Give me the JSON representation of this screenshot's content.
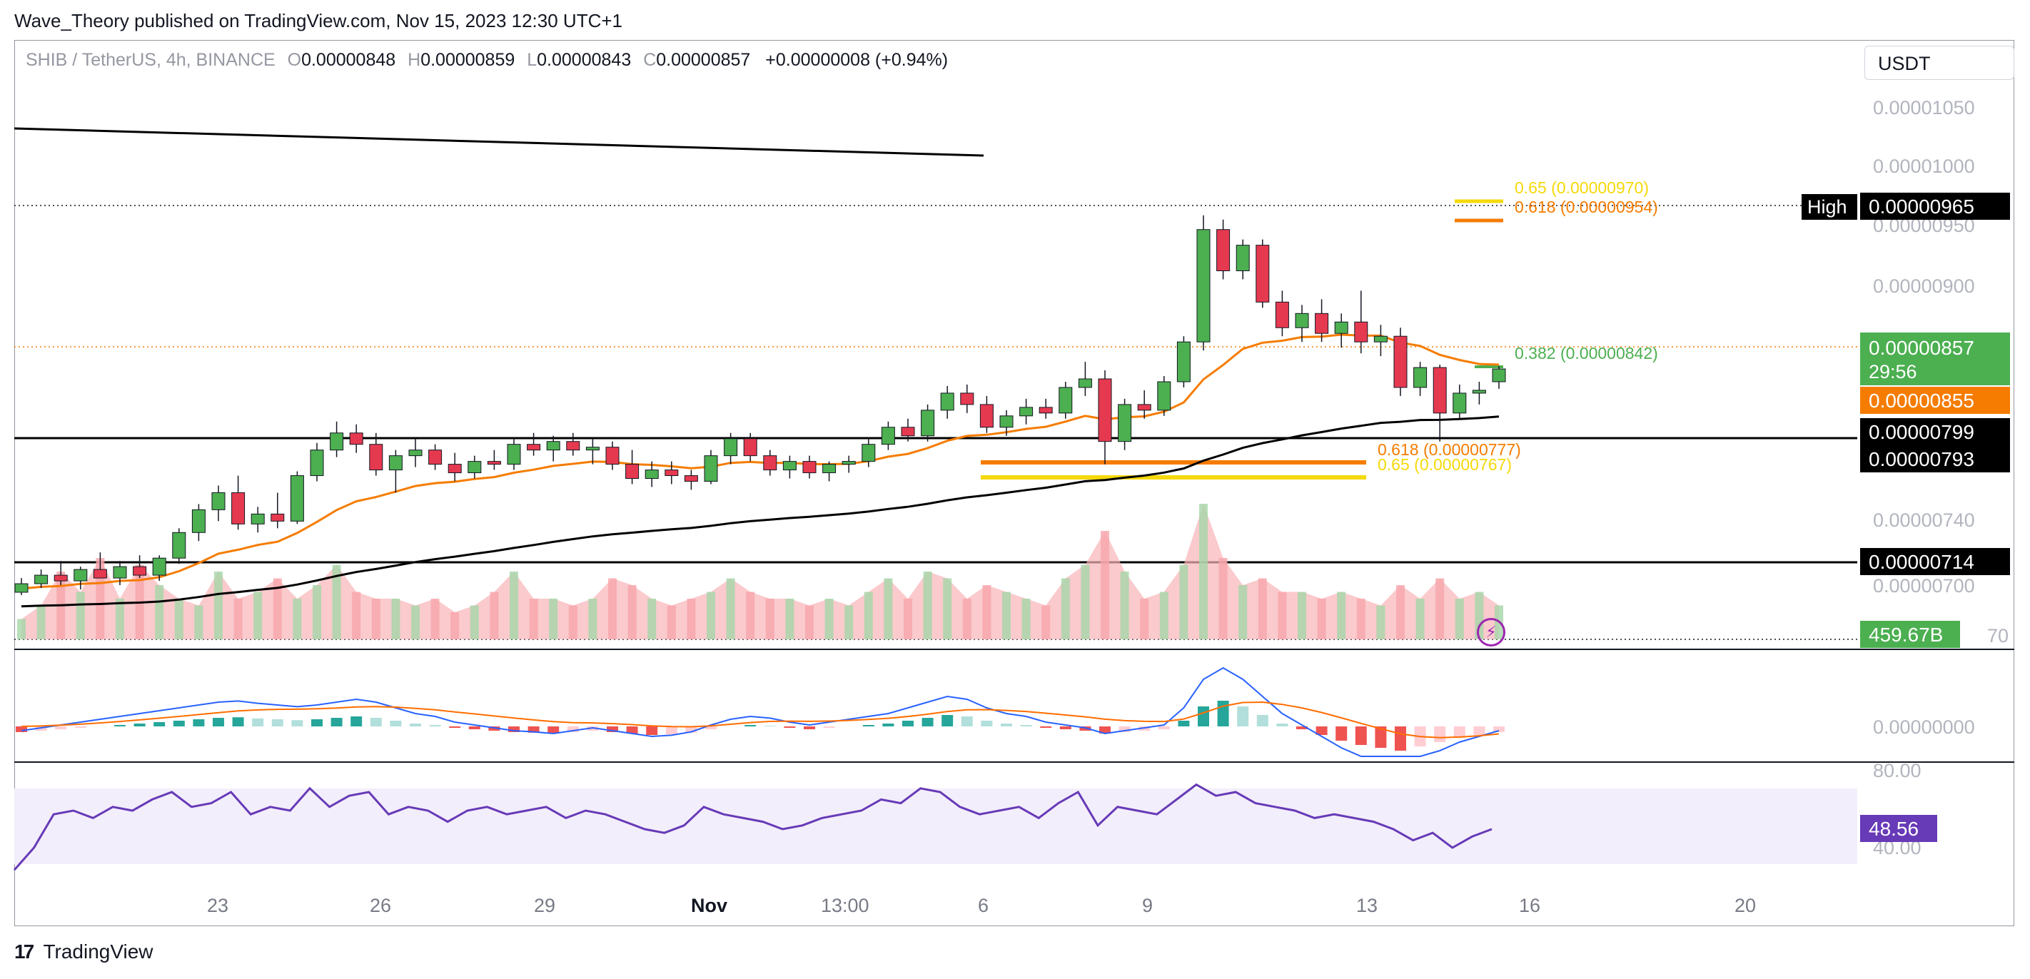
{
  "header": {
    "publisher_line": "Wave_Theory published on TradingView.com, Nov 15, 2023 12:30 UTC+1"
  },
  "legend": {
    "symbol": "SHIB / TetherUS, 4h, BINANCE",
    "o_key": "O",
    "o_val": "0.00000848",
    "h_key": "H",
    "h_val": "0.00000859",
    "l_key": "L",
    "l_val": "0.00000843",
    "c_key": "C",
    "c_val": "0.00000857",
    "change": "+0.00000008 (+0.94%)"
  },
  "currency_selector": "USDT",
  "footer": {
    "logo_glyph": "17",
    "brand": "TradingView"
  },
  "colors": {
    "up": "#26a69a",
    "down": "#ef5350",
    "candle_up": "#4caf50",
    "candle_down": "#e53950",
    "ema50": "#f57c00",
    "ema200": "#000000",
    "fib_orange": "#f57c00",
    "fib_yellow": "#f5d90a",
    "price_tag": "#4caf50",
    "rsi": "#673ab7",
    "macd": "#2962ff",
    "signal": "#ff6d00"
  },
  "chart_data": {
    "type": "candlestick",
    "interval": "4h",
    "y_axis_ticks": [
      "0.00001050",
      "0.00001000",
      "0.00000950",
      "0.00000900",
      "0.00000740",
      "0.00000700",
      "0.00000000",
      "80.00",
      "40.00"
    ],
    "y_axis_cropped_tick": "70",
    "x_axis_ticks": [
      "23",
      "26",
      "29",
      "Nov",
      "13:00",
      "6",
      "9",
      "13",
      "16",
      "20"
    ],
    "price_labels": {
      "high_tag": "High",
      "high_value": "0.00000965",
      "last_price": "0.00000857",
      "countdown": "29:56",
      "ema50_value": "0.00000855",
      "ema200_value": "0.00000799",
      "support_1": "0.00000793",
      "support_2": "0.00000714",
      "volume": "459.67B",
      "rsi": "48.56"
    },
    "fib_labels": {
      "upper_065": "0.65 (0.00000970)",
      "upper_0618": "0.618 (0.00000954)",
      "mid_0382": "0.382 (0.00000842)",
      "lower_0618": "0.618 (0.00000777)",
      "lower_065": "0.65 (0.00000767)"
    },
    "candles": [
      [
        7e-06,
        7.1e-06,
        6.98e-06,
        7.06e-06
      ],
      [
        7.06e-06,
        7.16e-06,
        7.03e-06,
        7.12e-06
      ],
      [
        7.12e-06,
        7.22e-06,
        7.05e-06,
        7.08e-06
      ],
      [
        7.08e-06,
        7.18e-06,
        7.02e-06,
        7.16e-06
      ],
      [
        7.16e-06,
        7.28e-06,
        7.12e-06,
        7.1e-06
      ],
      [
        7.1e-06,
        7.22e-06,
        7.05e-06,
        7.18e-06
      ],
      [
        7.18e-06,
        7.26e-06,
        7.1e-06,
        7.12e-06
      ],
      [
        7.12e-06,
        7.26e-06,
        7.08e-06,
        7.24e-06
      ],
      [
        7.24e-06,
        7.45e-06,
        7.2e-06,
        7.42e-06
      ],
      [
        7.42e-06,
        7.62e-06,
        7.36e-06,
        7.58e-06
      ],
      [
        7.58e-06,
        7.75e-06,
        7.5e-06,
        7.7e-06
      ],
      [
        7.7e-06,
        7.82e-06,
        7.44e-06,
        7.48e-06
      ],
      [
        7.48e-06,
        7.6e-06,
        7.42e-06,
        7.55e-06
      ],
      [
        7.55e-06,
        7.7e-06,
        7.45e-06,
        7.5e-06
      ],
      [
        7.5e-06,
        7.85e-06,
        7.48e-06,
        7.82e-06
      ],
      [
        7.82e-06,
        8.05e-06,
        7.78e-06,
        8e-06
      ],
      [
        8e-06,
        8.2e-06,
        7.95e-06,
        8.12e-06
      ],
      [
        8.12e-06,
        8.18e-06,
        7.98e-06,
        8.04e-06
      ],
      [
        8.04e-06,
        8.12e-06,
        7.82e-06,
        7.86e-06
      ],
      [
        7.86e-06,
        8e-06,
        7.7e-06,
        7.96e-06
      ],
      [
        7.96e-06,
        8.08e-06,
        7.88e-06,
        8e-06
      ],
      [
        8e-06,
        8.04e-06,
        7.86e-06,
        7.9e-06
      ],
      [
        7.9e-06,
        7.98e-06,
        7.78e-06,
        7.84e-06
      ],
      [
        7.84e-06,
        7.96e-06,
        7.8e-06,
        7.92e-06
      ],
      [
        7.92e-06,
        8e-06,
        7.86e-06,
        7.9e-06
      ],
      [
        7.9e-06,
        8.08e-06,
        7.86e-06,
        8.04e-06
      ],
      [
        8.04e-06,
        8.12e-06,
        7.96e-06,
        8e-06
      ],
      [
        8e-06,
        8.1e-06,
        7.92e-06,
        8.06e-06
      ],
      [
        8.06e-06,
        8.12e-06,
        7.96e-06,
        8e-06
      ],
      [
        8e-06,
        8.08e-06,
        7.9e-06,
        8.02e-06
      ],
      [
        8.02e-06,
        8.06e-06,
        7.86e-06,
        7.9e-06
      ],
      [
        7.9e-06,
        8e-06,
        7.76e-06,
        7.8e-06
      ],
      [
        7.8e-06,
        7.92e-06,
        7.74e-06,
        7.86e-06
      ],
      [
        7.86e-06,
        7.92e-06,
        7.76e-06,
        7.82e-06
      ],
      [
        7.82e-06,
        7.86e-06,
        7.72e-06,
        7.78e-06
      ],
      [
        7.78e-06,
        8e-06,
        7.76e-06,
        7.96e-06
      ],
      [
        7.96e-06,
        8.12e-06,
        7.9e-06,
        8.08e-06
      ],
      [
        8.08e-06,
        8.12e-06,
        7.92e-06,
        7.96e-06
      ],
      [
        7.96e-06,
        8e-06,
        7.82e-06,
        7.86e-06
      ],
      [
        7.86e-06,
        7.96e-06,
        7.8e-06,
        7.92e-06
      ],
      [
        7.92e-06,
        7.96e-06,
        7.8e-06,
        7.84e-06
      ],
      [
        7.84e-06,
        7.92e-06,
        7.78e-06,
        7.9e-06
      ],
      [
        7.9e-06,
        7.96e-06,
        7.84e-06,
        7.92e-06
      ],
      [
        7.92e-06,
        8.08e-06,
        7.88e-06,
        8.04e-06
      ],
      [
        8.04e-06,
        8.2e-06,
        8e-06,
        8.16e-06
      ],
      [
        8.16e-06,
        8.22e-06,
        8.06e-06,
        8.1e-06
      ],
      [
        8.1e-06,
        8.32e-06,
        8.06e-06,
        8.28e-06
      ],
      [
        8.28e-06,
        8.45e-06,
        8.22e-06,
        8.4e-06
      ],
      [
        8.4e-06,
        8.46e-06,
        8.26e-06,
        8.32e-06
      ],
      [
        8.32e-06,
        8.38e-06,
        8.12e-06,
        8.16e-06
      ],
      [
        8.16e-06,
        8.28e-06,
        8.1e-06,
        8.24e-06
      ],
      [
        8.24e-06,
        8.36e-06,
        8.18e-06,
        8.3e-06
      ],
      [
        8.3e-06,
        8.36e-06,
        8.22e-06,
        8.26e-06
      ],
      [
        8.26e-06,
        8.48e-06,
        8.22e-06,
        8.44e-06
      ],
      [
        8.44e-06,
        8.62e-06,
        8.38e-06,
        8.5e-06
      ],
      [
        8.5e-06,
        8.56e-06,
        7.9e-06,
        8.06e-06
      ],
      [
        8.06e-06,
        8.36e-06,
        8e-06,
        8.32e-06
      ],
      [
        8.32e-06,
        8.42e-06,
        8.22e-06,
        8.28e-06
      ],
      [
        8.28e-06,
        8.52e-06,
        8.24e-06,
        8.48e-06
      ],
      [
        8.48e-06,
        8.8e-06,
        8.44e-06,
        8.76e-06
      ],
      [
        8.76e-06,
        9.65e-06,
        8.7e-06,
        9.55e-06
      ],
      [
        9.55e-06,
        9.62e-06,
        9.2e-06,
        9.26e-06
      ],
      [
        9.26e-06,
        9.48e-06,
        9.2e-06,
        9.44e-06
      ],
      [
        9.44e-06,
        9.48e-06,
        9e-06,
        9.04e-06
      ],
      [
        9.04e-06,
        9.12e-06,
        8.8e-06,
        8.86e-06
      ],
      [
        8.86e-06,
        9.02e-06,
        8.76e-06,
        8.96e-06
      ],
      [
        8.96e-06,
        9.06e-06,
        8.76e-06,
        8.82e-06
      ],
      [
        8.82e-06,
        8.96e-06,
        8.72e-06,
        8.9e-06
      ],
      [
        8.9e-06,
        9.12e-06,
        8.68e-06,
        8.76e-06
      ],
      [
        8.76e-06,
        8.88e-06,
        8.66e-06,
        8.8e-06
      ],
      [
        8.8e-06,
        8.86e-06,
        8.38e-06,
        8.44e-06
      ],
      [
        8.44e-06,
        8.62e-06,
        8.38e-06,
        8.58e-06
      ],
      [
        8.58e-06,
        8.6e-06,
        8.06e-06,
        8.26e-06
      ],
      [
        8.26e-06,
        8.46e-06,
        8.22e-06,
        8.4e-06
      ],
      [
        8.4e-06,
        8.48e-06,
        8.32e-06,
        8.42e-06
      ],
      [
        8.48e-06,
        8.59e-06,
        8.43e-06,
        8.57e-06
      ]
    ],
    "volume_spikes": [
      0.15,
      0.25,
      0.5,
      0.35,
      0.6,
      0.3,
      0.55,
      0.4,
      0.3,
      0.25,
      0.5,
      0.3,
      0.35,
      0.45,
      0.3,
      0.4,
      0.55,
      0.35,
      0.3,
      0.3,
      0.25,
      0.3,
      0.2,
      0.25,
      0.35,
      0.5,
      0.3,
      0.3,
      0.25,
      0.3,
      0.45,
      0.4,
      0.3,
      0.25,
      0.3,
      0.35,
      0.45,
      0.35,
      0.3,
      0.3,
      0.25,
      0.3,
      0.25,
      0.35,
      0.45,
      0.3,
      0.5,
      0.45,
      0.3,
      0.4,
      0.35,
      0.3,
      0.25,
      0.45,
      0.55,
      0.8,
      0.5,
      0.3,
      0.35,
      0.55,
      1.0,
      0.6,
      0.4,
      0.45,
      0.35,
      0.35,
      0.3,
      0.35,
      0.3,
      0.25,
      0.4,
      0.3,
      0.45,
      0.3,
      0.35,
      0.25
    ],
    "macd_hist": [
      -0.2,
      -0.15,
      -0.1,
      -0.05,
      0.0,
      0.05,
      0.1,
      0.15,
      0.2,
      0.25,
      0.3,
      0.32,
      0.28,
      0.25,
      0.22,
      0.25,
      0.3,
      0.35,
      0.3,
      0.2,
      0.1,
      0.05,
      -0.05,
      -0.1,
      -0.15,
      -0.2,
      -0.22,
      -0.25,
      -0.2,
      -0.15,
      -0.2,
      -0.25,
      -0.3,
      -0.28,
      -0.22,
      -0.1,
      0.0,
      0.05,
      0.02,
      -0.05,
      -0.1,
      -0.05,
      0.0,
      0.05,
      0.1,
      0.2,
      0.3,
      0.4,
      0.35,
      0.2,
      0.1,
      0.05,
      -0.05,
      -0.1,
      -0.15,
      -0.25,
      -0.2,
      -0.15,
      -0.1,
      0.2,
      0.7,
      0.9,
      0.7,
      0.4,
      0.1,
      -0.1,
      -0.3,
      -0.5,
      -0.65,
      -0.75,
      -0.85,
      -0.7,
      -0.55,
      -0.4,
      -0.3,
      -0.2
    ],
    "rsi_values": [
      28,
      40,
      58,
      60,
      56,
      62,
      60,
      66,
      70,
      62,
      64,
      70,
      58,
      62,
      60,
      72,
      62,
      68,
      70,
      58,
      62,
      60,
      54,
      60,
      62,
      58,
      60,
      62,
      56,
      60,
      58,
      54,
      50,
      48,
      52,
      62,
      58,
      56,
      54,
      50,
      52,
      56,
      58,
      60,
      66,
      64,
      72,
      70,
      62,
      58,
      60,
      62,
      56,
      64,
      70,
      52,
      62,
      60,
      58,
      66,
      74,
      68,
      70,
      64,
      62,
      60,
      56,
      58,
      56,
      54,
      50,
      44,
      48,
      40,
      46,
      50
    ]
  }
}
